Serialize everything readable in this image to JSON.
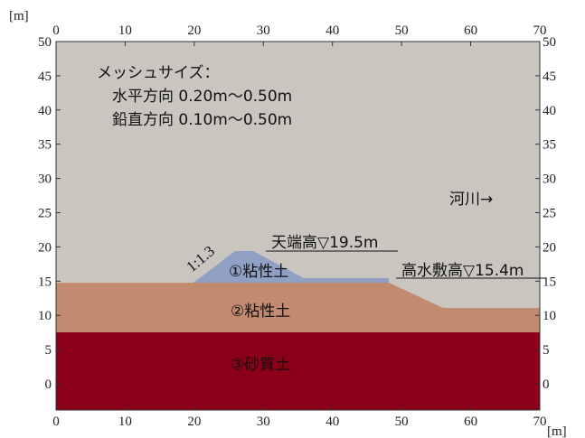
{
  "diagram": {
    "x_unit": "[m]",
    "y_unit": "[m]",
    "x_ticks": [
      "0",
      "10",
      "20",
      "30",
      "40",
      "50",
      "60",
      "70"
    ],
    "y_ticks": [
      "50",
      "45",
      "40",
      "35",
      "30",
      "25",
      "20",
      "15",
      "10",
      "5",
      "0"
    ],
    "mesh_title": "メッシュサイズ：",
    "mesh_horizontal": "水平方向 0.20m～0.50m",
    "mesh_vertical": "鉛直方向 0.10m～0.50m",
    "river_label": "河川→",
    "crest_label": "天端高▽19.5m",
    "floodplain_label": "高水敷高▽15.4m",
    "slope_label": "1:1.3",
    "layer1_label": "①粘性土",
    "layer2_label": "②粘性土",
    "layer3_label": "③砂質土",
    "colors": {
      "background": "#c9c6bf",
      "layer1": "#8fa0c4",
      "layer2": "#c28b70",
      "layer3": "#8b0019"
    }
  }
}
